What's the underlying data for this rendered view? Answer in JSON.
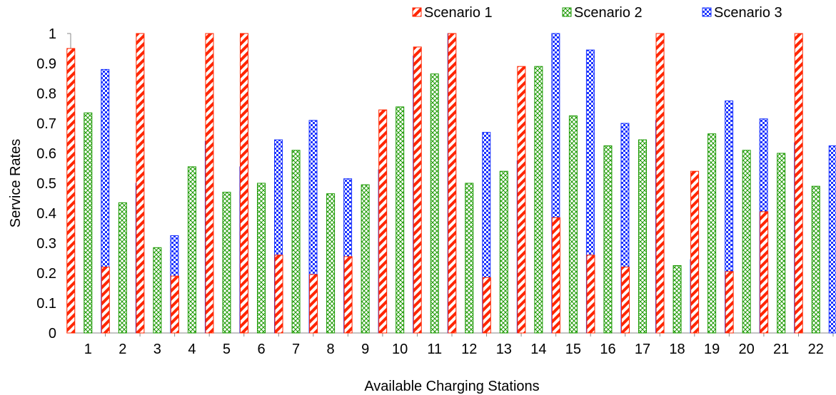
{
  "chart_data": {
    "type": "bar",
    "title": "",
    "xlabel": "Available Charging Stations",
    "ylabel": "Service Rates",
    "ylim": [
      0,
      1
    ],
    "yticks": [
      0,
      0.1,
      0.2,
      0.3,
      0.4,
      0.5,
      0.6,
      0.7,
      0.8,
      0.9,
      1
    ],
    "ytick_labels": [
      "0",
      "0.1",
      "0.2",
      "0.3",
      "0.4",
      "0.5",
      "0.6",
      "0.7",
      "0.8",
      "0.9",
      "1"
    ],
    "grid": false,
    "legend_position": "top-right",
    "categories": [
      "1",
      "2",
      "3",
      "4",
      "5",
      "6",
      "7",
      "8",
      "9",
      "10",
      "11",
      "12",
      "13",
      "14",
      "15",
      "16",
      "17",
      "18",
      "19",
      "20",
      "21",
      "22"
    ],
    "series": [
      {
        "name": "Scenario 1",
        "color": "#ff2600",
        "pattern": "diagonal-stripes",
        "values": [
          0.95,
          0.22,
          1.0,
          0.19,
          1.0,
          1.0,
          0.26,
          0.195,
          0.255,
          0.745,
          0.955,
          1.0,
          0.185,
          0.89,
          0.385,
          0.26,
          0.22,
          1.0,
          0.54,
          0.205,
          0.405,
          1.0
        ]
      },
      {
        "name": "Scenario 2",
        "color": "#1a9900",
        "pattern": "crosshatch",
        "values": [
          0.735,
          0.435,
          0.285,
          0.555,
          0.47,
          0.5,
          0.61,
          0.465,
          0.495,
          0.755,
          0.865,
          0.5,
          0.54,
          0.89,
          0.725,
          0.625,
          0.645,
          0.225,
          0.665,
          0.61,
          0.6,
          0.49
        ]
      },
      {
        "name": "Scenario 3",
        "color": "#1a33ff",
        "pattern": "checker",
        "values": [
          0.88,
          0.5,
          0.325,
          0.64,
          0.555,
          0.645,
          0.71,
          0.515,
          0.545,
          0.925,
          1.0,
          0.67,
          0.575,
          1.0,
          0.945,
          0.7,
          0.71,
          0.245,
          0.775,
          0.715,
          0.635,
          0.625
        ]
      }
    ]
  }
}
